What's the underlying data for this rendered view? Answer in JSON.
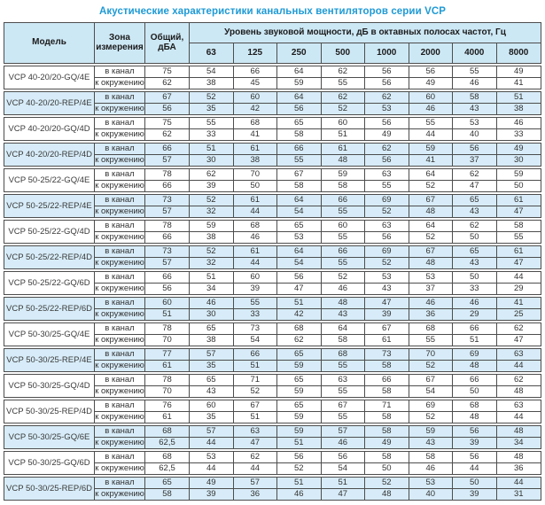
{
  "title": "Акустические характеристики канальных вентиляторов  серии VCP",
  "colors": {
    "title_text": "#1e9ad5",
    "header_background": "#cde8f5",
    "stripe_background": "#d7ecf8",
    "border": "#4d4d4d"
  },
  "table": {
    "headers": {
      "model": "Модель",
      "zone": "Зона измерения",
      "total": "Общий, дБА",
      "spl": "Уровень звуковой мощности, дБ в октавных полосах частот, Гц",
      "frequencies": [
        "63",
        "125",
        "250",
        "500",
        "1000",
        "2000",
        "4000",
        "8000"
      ]
    },
    "zone_labels": [
      "в канал",
      "к окружению"
    ],
    "rows": [
      {
        "model": "VCP 40-20/20-GQ/4E",
        "highlight": false,
        "duct": {
          "total": "75",
          "levels": [
            "54",
            "66",
            "64",
            "62",
            "56",
            "56",
            "55",
            "49"
          ]
        },
        "ambient": {
          "total": "62",
          "levels": [
            "38",
            "45",
            "59",
            "55",
            "56",
            "49",
            "46",
            "41"
          ]
        }
      },
      {
        "model": "VCP 40-20/20-REP/4E",
        "highlight": true,
        "duct": {
          "total": "67",
          "levels": [
            "52",
            "60",
            "64",
            "62",
            "62",
            "60",
            "58",
            "51"
          ]
        },
        "ambient": {
          "total": "56",
          "levels": [
            "35",
            "42",
            "56",
            "52",
            "53",
            "46",
            "43",
            "38"
          ]
        }
      },
      {
        "model": "VCP 40-20/20-GQ/4D",
        "highlight": false,
        "duct": {
          "total": "75",
          "levels": [
            "55",
            "68",
            "65",
            "60",
            "56",
            "55",
            "53",
            "46"
          ]
        },
        "ambient": {
          "total": "62",
          "levels": [
            "33",
            "41",
            "58",
            "51",
            "49",
            "44",
            "40",
            "33"
          ]
        }
      },
      {
        "model": "VCP 40-20/20-REP/4D",
        "highlight": true,
        "duct": {
          "total": "66",
          "levels": [
            "51",
            "61",
            "66",
            "61",
            "62",
            "59",
            "56",
            "49"
          ]
        },
        "ambient": {
          "total": "57",
          "levels": [
            "30",
            "38",
            "55",
            "48",
            "56",
            "41",
            "37",
            "30"
          ]
        }
      },
      {
        "model": "VCP 50-25/22-GQ/4E",
        "highlight": false,
        "duct": {
          "total": "78",
          "levels": [
            "62",
            "70",
            "67",
            "59",
            "63",
            "64",
            "62",
            "59"
          ]
        },
        "ambient": {
          "total": "66",
          "levels": [
            "39",
            "50",
            "58",
            "58",
            "55",
            "52",
            "47",
            "50"
          ]
        }
      },
      {
        "model": "VCP 50-25/22-REP/4E",
        "highlight": true,
        "duct": {
          "total": "73",
          "levels": [
            "52",
            "61",
            "64",
            "66",
            "69",
            "67",
            "65",
            "61"
          ]
        },
        "ambient": {
          "total": "57",
          "levels": [
            "32",
            "44",
            "54",
            "55",
            "52",
            "48",
            "43",
            "47"
          ]
        }
      },
      {
        "model": "VCP 50-25/22-GQ/4D",
        "highlight": false,
        "duct": {
          "total": "78",
          "levels": [
            "59",
            "68",
            "65",
            "60",
            "63",
            "64",
            "62",
            "58"
          ]
        },
        "ambient": {
          "total": "66",
          "levels": [
            "38",
            "46",
            "53",
            "55",
            "56",
            "52",
            "50",
            "55"
          ]
        }
      },
      {
        "model": "VCP 50-25/22-REP/4D",
        "highlight": true,
        "duct": {
          "total": "73",
          "levels": [
            "52",
            "61",
            "64",
            "66",
            "69",
            "67",
            "65",
            "61"
          ]
        },
        "ambient": {
          "total": "57",
          "levels": [
            "32",
            "44",
            "54",
            "55",
            "52",
            "48",
            "43",
            "47"
          ]
        }
      },
      {
        "model": "VCP 50-25/22-GQ/6D",
        "highlight": false,
        "duct": {
          "total": "66",
          "levels": [
            "51",
            "60",
            "56",
            "52",
            "53",
            "53",
            "50",
            "44"
          ]
        },
        "ambient": {
          "total": "56",
          "levels": [
            "34",
            "39",
            "47",
            "46",
            "43",
            "37",
            "33",
            "29"
          ]
        }
      },
      {
        "model": "VCP 50-25/22-REP/6D",
        "highlight": true,
        "duct": {
          "total": "60",
          "levels": [
            "46",
            "55",
            "51",
            "48",
            "47",
            "46",
            "46",
            "41"
          ]
        },
        "ambient": {
          "total": "51",
          "levels": [
            "30",
            "33",
            "42",
            "43",
            "39",
            "36",
            "29",
            "25"
          ]
        }
      },
      {
        "model": "VCP 50-30/25-GQ/4E",
        "highlight": false,
        "duct": {
          "total": "78",
          "levels": [
            "65",
            "73",
            "68",
            "64",
            "67",
            "68",
            "66",
            "62"
          ]
        },
        "ambient": {
          "total": "70",
          "levels": [
            "38",
            "54",
            "62",
            "58",
            "61",
            "55",
            "51",
            "47"
          ]
        }
      },
      {
        "model": "VCP 50-30/25-REP/4E",
        "highlight": true,
        "duct": {
          "total": "77",
          "levels": [
            "57",
            "66",
            "65",
            "68",
            "73",
            "70",
            "69",
            "63"
          ]
        },
        "ambient": {
          "total": "61",
          "levels": [
            "35",
            "51",
            "59",
            "55",
            "58",
            "52",
            "48",
            "44"
          ]
        }
      },
      {
        "model": "VCP 50-30/25-GQ/4D",
        "highlight": false,
        "duct": {
          "total": "78",
          "levels": [
            "65",
            "71",
            "65",
            "63",
            "66",
            "67",
            "66",
            "62"
          ]
        },
        "ambient": {
          "total": "70",
          "levels": [
            "43",
            "52",
            "59",
            "55",
            "58",
            "54",
            "50",
            "48"
          ]
        }
      },
      {
        "model": "VCP 50-30/25-REP/4D",
        "highlight": false,
        "duct": {
          "total": "76",
          "levels": [
            "60",
            "67",
            "65",
            "67",
            "71",
            "69",
            "68",
            "63"
          ]
        },
        "ambient": {
          "total": "61",
          "levels": [
            "35",
            "51",
            "59",
            "55",
            "58",
            "52",
            "48",
            "44"
          ]
        }
      },
      {
        "model": "VCP 50-30/25-GQ/6E",
        "highlight": true,
        "duct": {
          "total": "68",
          "levels": [
            "57",
            "63",
            "59",
            "57",
            "58",
            "59",
            "56",
            "48"
          ]
        },
        "ambient": {
          "total": "62,5",
          "levels": [
            "44",
            "47",
            "51",
            "46",
            "49",
            "43",
            "39",
            "34"
          ]
        }
      },
      {
        "model": "VCP 50-30/25-GQ/6D",
        "highlight": false,
        "duct": {
          "total": "68",
          "levels": [
            "53",
            "62",
            "56",
            "56",
            "58",
            "58",
            "56",
            "48"
          ]
        },
        "ambient": {
          "total": "62,5",
          "levels": [
            "44",
            "44",
            "52",
            "54",
            "50",
            "46",
            "44",
            "36"
          ]
        }
      },
      {
        "model": "VCP 50-30/25-REP/6D",
        "highlight": true,
        "duct": {
          "total": "65",
          "levels": [
            "49",
            "57",
            "51",
            "51",
            "52",
            "53",
            "50",
            "44"
          ]
        },
        "ambient": {
          "total": "58",
          "levels": [
            "39",
            "36",
            "46",
            "47",
            "48",
            "40",
            "39",
            "31"
          ]
        }
      }
    ]
  }
}
